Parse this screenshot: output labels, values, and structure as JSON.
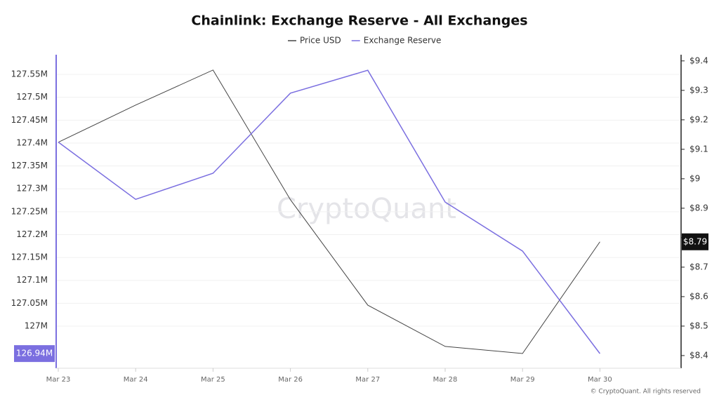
{
  "chart_data": {
    "type": "line",
    "title": "Chainlink: Exchange Reserve - All Exchanges",
    "watermark": "CryptoQuant",
    "source": "© CryptoQuant. All rights reserved",
    "categories": [
      "Mar 23",
      "Mar 24",
      "Mar 25",
      "Mar 26",
      "Mar 27",
      "Mar 28",
      "Mar 29",
      "Mar 30"
    ],
    "series": [
      {
        "name": "Price USD",
        "color": "#444444",
        "axis": "y2",
        "values": [
          9.124,
          9.25,
          9.369,
          8.929,
          8.571,
          8.431,
          8.407,
          8.786
        ],
        "value_labels": [
          null,
          null,
          null,
          null,
          null,
          null,
          null,
          "$8.79"
        ]
      },
      {
        "name": "Exchange Reserve",
        "color": "#7b6fe0",
        "values": [
          127.402,
          127.277,
          127.334,
          127.509,
          127.559,
          127.271,
          127.164,
          126.94
        ],
        "value_labels": [
          null,
          null,
          null,
          null,
          null,
          null,
          null,
          "126.94M"
        ]
      }
    ],
    "ylim": [
      126.908,
      127.593
    ],
    "yticks": [
      {
        "value": 127,
        "label": "127M"
      },
      {
        "value": 127.05,
        "label": "127.05M"
      },
      {
        "value": 127.1,
        "label": "127.1M"
      },
      {
        "value": 127.15,
        "label": "127.15M"
      },
      {
        "value": 127.2,
        "label": "127.2M"
      },
      {
        "value": 127.25,
        "label": "127.25M"
      },
      {
        "value": 127.3,
        "label": "127.3M"
      },
      {
        "value": 127.35,
        "label": "127.35M"
      },
      {
        "value": 127.4,
        "label": "127.4M"
      },
      {
        "value": 127.45,
        "label": "127.45M"
      },
      {
        "value": 127.5,
        "label": "127.5M"
      },
      {
        "value": 127.55,
        "label": "127.55M"
      }
    ],
    "y2lim": [
      8.357,
      9.421
    ],
    "y2ticks": [
      {
        "value": 8.4,
        "label": "$8.4"
      },
      {
        "value": 8.5,
        "label": "$8.5"
      },
      {
        "value": 8.6,
        "label": "$8.6"
      },
      {
        "value": 8.7,
        "label": "$8.7"
      },
      {
        "value": 8.8,
        "label": "$8.8"
      },
      {
        "value": 8.9,
        "label": "$8.9"
      },
      {
        "value": 9,
        "label": "$9"
      },
      {
        "value": 9.1,
        "label": "$9.1"
      },
      {
        "value": 9.2,
        "label": "$9.2"
      },
      {
        "value": 9.3,
        "label": "$9.3"
      },
      {
        "value": 9.4,
        "label": "$9.4"
      }
    ],
    "grid": true
  }
}
